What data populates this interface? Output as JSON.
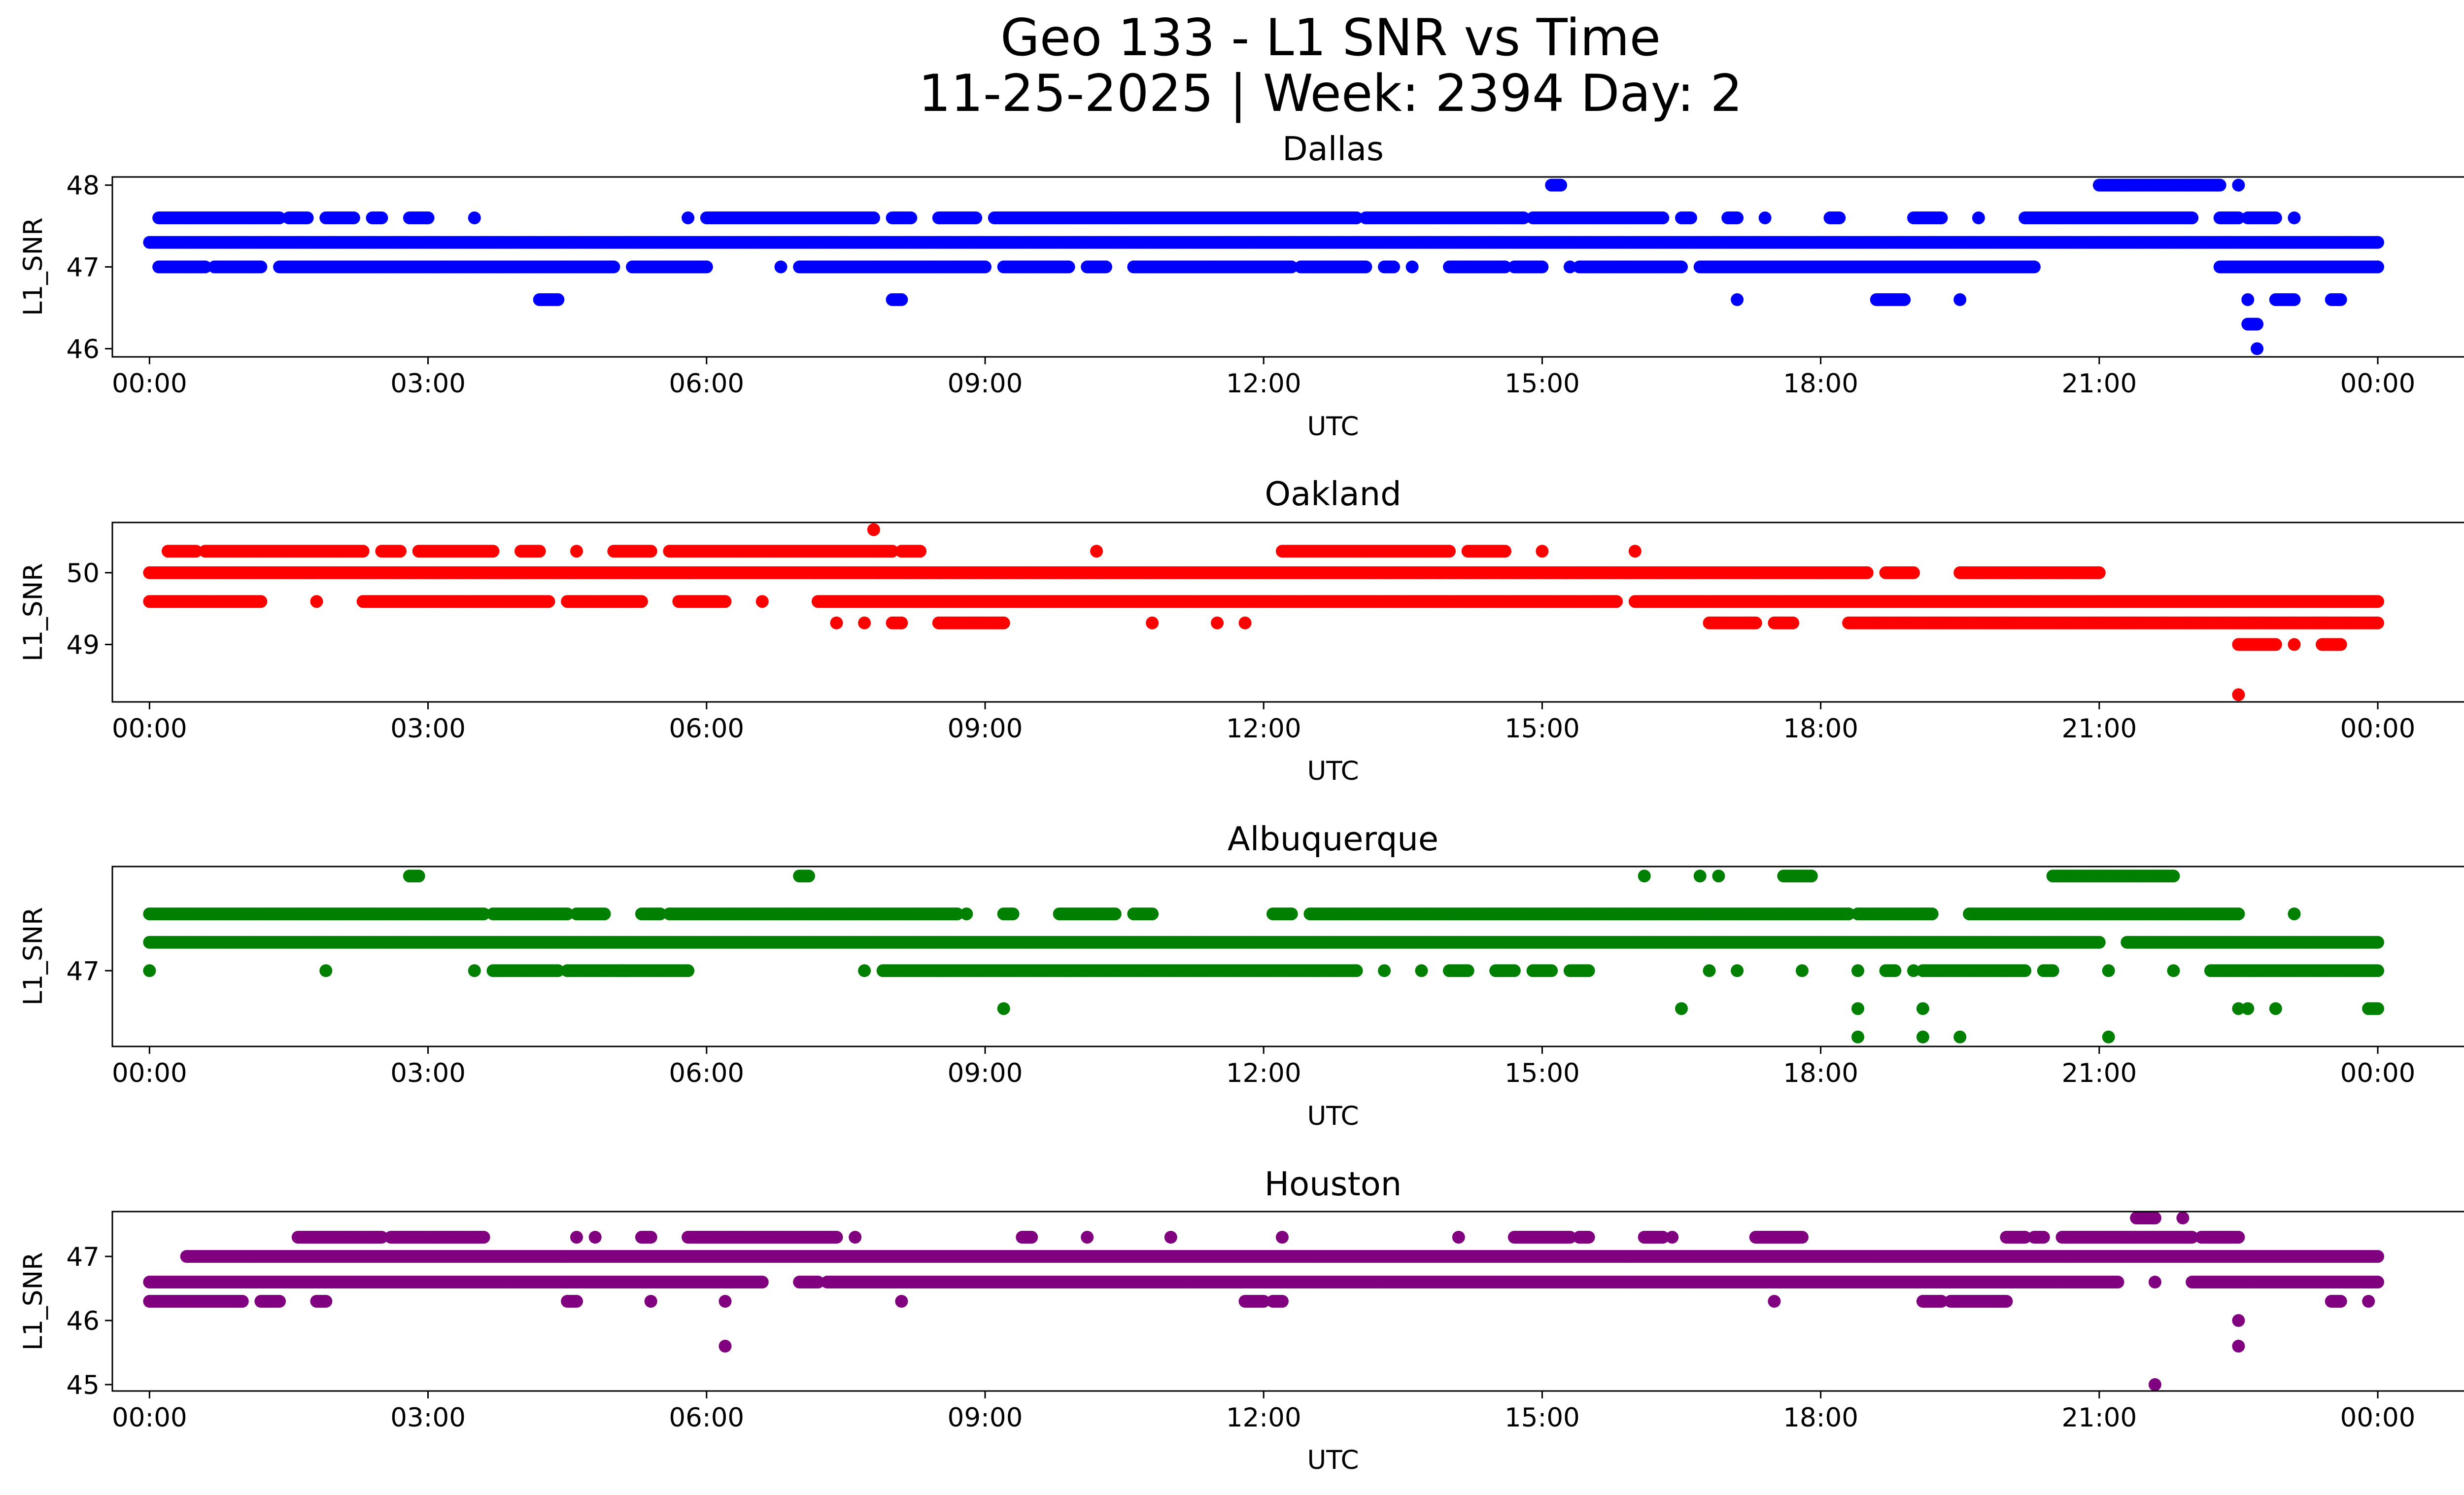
{
  "figure": {
    "title_line1": "Geo 133 - L1 SNR vs Time",
    "title_line2": "11-25-2025 | Week: 2394 Day: 2"
  },
  "chart_data": [
    {
      "type": "scatter",
      "title": "Dallas",
      "xlabel": "UTC",
      "ylabel": "L1_SNR",
      "color": "#0000ff",
      "xlim": [
        -0.4,
        25.9
      ],
      "ylim": [
        45.9,
        48.1
      ],
      "yticks": [
        46,
        47,
        48
      ],
      "xticks": [
        0,
        3,
        6,
        9,
        12,
        15,
        18,
        21,
        24
      ],
      "xtick_labels": [
        "00:00",
        "03:00",
        "06:00",
        "09:00",
        "12:00",
        "15:00",
        "18:00",
        "21:00",
        "00:00"
      ],
      "bands": [
        {
          "y": 47.3,
          "segments": [
            [
              0,
              24
            ]
          ]
        },
        {
          "y": 47.6,
          "segments": [
            [
              0.1,
              1.4
            ],
            [
              1.5,
              1.7
            ],
            [
              1.9,
              2.2
            ],
            [
              2.4,
              2.5
            ],
            [
              2.8,
              3.0
            ],
            [
              3.5,
              3.5
            ],
            [
              5.8,
              5.8
            ],
            [
              6.0,
              7.8
            ],
            [
              8.0,
              8.2
            ],
            [
              8.5,
              8.9
            ],
            [
              9.1,
              10.4
            ],
            [
              10.4,
              13.0
            ],
            [
              13.1,
              14.8
            ],
            [
              14.9,
              16.3
            ],
            [
              16.5,
              16.6
            ],
            [
              17.0,
              17.1
            ],
            [
              17.4,
              17.4
            ],
            [
              18.1,
              18.2
            ],
            [
              19.0,
              19.3
            ],
            [
              19.7,
              19.7
            ],
            [
              20.2,
              22.0
            ],
            [
              22.3,
              22.5
            ],
            [
              22.6,
              22.9
            ],
            [
              23.1,
              23.1
            ]
          ]
        },
        {
          "y": 47.0,
          "segments": [
            [
              0.1,
              0.6
            ],
            [
              0.7,
              1.2
            ],
            [
              1.4,
              5.0
            ],
            [
              5.2,
              6.0
            ],
            [
              6.8,
              6.8
            ],
            [
              7.0,
              9.0
            ],
            [
              9.2,
              9.9
            ],
            [
              10.1,
              10.3
            ],
            [
              10.6,
              12.3
            ],
            [
              12.4,
              13.1
            ],
            [
              13.3,
              13.4
            ],
            [
              13.6,
              13.6
            ],
            [
              14.0,
              14.6
            ],
            [
              14.7,
              15.0
            ],
            [
              15.3,
              15.3
            ],
            [
              15.4,
              16.5
            ],
            [
              16.7,
              20.3
            ],
            [
              22.3,
              24.0
            ]
          ]
        },
        {
          "y": 48.0,
          "segments": [
            [
              15.1,
              15.2
            ],
            [
              21.0,
              22.3
            ],
            [
              22.5,
              22.5
            ]
          ]
        },
        {
          "y": 46.6,
          "segments": [
            [
              4.2,
              4.4
            ],
            [
              8.0,
              8.1
            ],
            [
              17.1,
              17.1
            ],
            [
              18.6,
              18.9
            ],
            [
              19.5,
              19.5
            ],
            [
              22.6,
              22.6
            ],
            [
              22.9,
              23.1
            ],
            [
              23.5,
              23.6
            ]
          ]
        },
        {
          "y": 46.3,
          "segments": [
            [
              22.6,
              22.7
            ]
          ]
        },
        {
          "y": 46.0,
          "segments": [
            [
              22.7,
              22.7
            ]
          ]
        }
      ]
    },
    {
      "type": "scatter",
      "title": "Oakland",
      "xlabel": "UTC",
      "ylabel": "L1_SNR",
      "color": "#ff0000",
      "xlim": [
        -0.4,
        25.9
      ],
      "ylim": [
        48.2,
        50.7
      ],
      "yticks": [
        49,
        50
      ],
      "xticks": [
        0,
        3,
        6,
        9,
        12,
        15,
        18,
        21,
        24
      ],
      "xtick_labels": [
        "00:00",
        "03:00",
        "06:00",
        "09:00",
        "12:00",
        "15:00",
        "18:00",
        "21:00",
        "00:00"
      ],
      "bands": [
        {
          "y": 50.0,
          "segments": [
            [
              0,
              18.5
            ],
            [
              18.7,
              19.0
            ],
            [
              19.5,
              21.0
            ]
          ]
        },
        {
          "y": 49.6,
          "segments": [
            [
              0,
              1.2
            ],
            [
              1.8,
              1.8
            ],
            [
              2.3,
              4.3
            ],
            [
              4.5,
              5.3
            ],
            [
              5.7,
              6.2
            ],
            [
              6.6,
              6.6
            ],
            [
              7.2,
              15.8
            ],
            [
              16.0,
              24.0
            ]
          ]
        },
        {
          "y": 50.3,
          "segments": [
            [
              0.2,
              0.5
            ],
            [
              0.6,
              2.3
            ],
            [
              2.5,
              2.7
            ],
            [
              2.9,
              3.7
            ],
            [
              4.0,
              4.2
            ],
            [
              4.6,
              4.6
            ],
            [
              5.0,
              5.4
            ],
            [
              5.6,
              8.0
            ],
            [
              8.1,
              8.3
            ],
            [
              10.2,
              10.2
            ],
            [
              12.2,
              14.0
            ],
            [
              14.2,
              14.6
            ],
            [
              15.0,
              15.0
            ],
            [
              16.0,
              16.0
            ]
          ]
        },
        {
          "y": 49.3,
          "segments": [
            [
              7.4,
              7.4
            ],
            [
              7.7,
              7.7
            ],
            [
              8.0,
              8.1
            ],
            [
              8.5,
              9.2
            ],
            [
              10.8,
              10.8
            ],
            [
              11.5,
              11.5
            ],
            [
              11.8,
              11.8
            ],
            [
              16.8,
              17.3
            ],
            [
              17.5,
              17.7
            ],
            [
              18.3,
              24.0
            ]
          ]
        },
        {
          "y": 50.6,
          "segments": [
            [
              7.8,
              7.8
            ]
          ]
        },
        {
          "y": 49.0,
          "segments": [
            [
              22.5,
              22.9
            ],
            [
              23.1,
              23.1
            ],
            [
              23.4,
              23.6
            ]
          ]
        },
        {
          "y": 48.3,
          "segments": [
            [
              22.5,
              22.5
            ]
          ]
        }
      ]
    },
    {
      "type": "scatter",
      "title": "Albuquerque",
      "xlabel": "UTC",
      "ylabel": "L1_SNR",
      "color": "#008000",
      "xlim": [
        -0.4,
        25.9
      ],
      "ylim": [
        46.2,
        48.1
      ],
      "yticks": [
        47
      ],
      "xticks": [
        0,
        3,
        6,
        9,
        12,
        15,
        18,
        21,
        24
      ],
      "xtick_labels": [
        "00:00",
        "03:00",
        "06:00",
        "09:00",
        "12:00",
        "15:00",
        "18:00",
        "21:00",
        "00:00"
      ],
      "bands": [
        {
          "y": 47.3,
          "segments": [
            [
              0,
              21.0
            ],
            [
              21.3,
              24.0
            ]
          ]
        },
        {
          "y": 47.6,
          "segments": [
            [
              0,
              3.6
            ],
            [
              3.7,
              4.5
            ],
            [
              4.6,
              4.9
            ],
            [
              5.3,
              5.5
            ],
            [
              5.6,
              8.7
            ],
            [
              8.8,
              8.8
            ],
            [
              9.2,
              9.3
            ],
            [
              9.8,
              10.4
            ],
            [
              10.6,
              10.8
            ],
            [
              12.1,
              12.3
            ],
            [
              12.5,
              18.3
            ],
            [
              18.3,
              18.3
            ],
            [
              18.4,
              19.1
            ],
            [
              19.1,
              19.2
            ],
            [
              19.6,
              22.5
            ],
            [
              23.1,
              23.1
            ]
          ]
        },
        {
          "y": 47.0,
          "segments": [
            [
              0,
              0
            ],
            [
              1.9,
              1.9
            ],
            [
              3.5,
              3.5
            ],
            [
              3.7,
              4.4
            ],
            [
              4.5,
              5.1
            ],
            [
              5.1,
              5.8
            ],
            [
              7.7,
              7.7
            ],
            [
              7.9,
              13.0
            ],
            [
              13.3,
              13.3
            ],
            [
              13.7,
              13.7
            ],
            [
              14.0,
              14.2
            ],
            [
              14.5,
              14.7
            ],
            [
              14.9,
              15.1
            ],
            [
              15.3,
              15.5
            ],
            [
              16.8,
              16.8
            ],
            [
              17.1,
              17.1
            ],
            [
              17.8,
              17.8
            ],
            [
              18.4,
              18.4
            ],
            [
              18.7,
              18.8
            ],
            [
              19.0,
              19.0
            ],
            [
              19.1,
              20.2
            ],
            [
              20.4,
              20.5
            ],
            [
              21.1,
              21.1
            ],
            [
              21.8,
              21.8
            ],
            [
              22.2,
              24.0
            ]
          ]
        },
        {
          "y": 48.0,
          "segments": [
            [
              2.8,
              2.9
            ],
            [
              7.0,
              7.1
            ],
            [
              16.1,
              16.1
            ],
            [
              16.7,
              16.7
            ],
            [
              16.9,
              16.9
            ],
            [
              17.6,
              17.9
            ],
            [
              20.5,
              21.8
            ]
          ]
        },
        {
          "y": 46.6,
          "segments": [
            [
              9.2,
              9.2
            ],
            [
              16.5,
              16.5
            ],
            [
              18.4,
              18.4
            ],
            [
              19.1,
              19.1
            ],
            [
              22.5,
              22.5
            ],
            [
              22.6,
              22.6
            ],
            [
              22.9,
              22.9
            ],
            [
              23.9,
              24.0
            ]
          ]
        },
        {
          "y": 46.3,
          "segments": [
            [
              18.4,
              18.4
            ],
            [
              19.1,
              19.1
            ],
            [
              19.5,
              19.5
            ],
            [
              21.1,
              21.1
            ]
          ]
        }
      ]
    },
    {
      "type": "scatter",
      "title": "Houston",
      "xlabel": "UTC",
      "ylabel": "L1_SNR",
      "color": "#800080",
      "xlim": [
        -0.4,
        25.9
      ],
      "ylim": [
        44.9,
        47.7
      ],
      "yticks": [
        45,
        46,
        47
      ],
      "xticks": [
        0,
        3,
        6,
        9,
        12,
        15,
        18,
        21,
        24
      ],
      "xtick_labels": [
        "00:00",
        "03:00",
        "06:00",
        "09:00",
        "12:00",
        "15:00",
        "18:00",
        "21:00",
        "00:00"
      ],
      "bands": [
        {
          "y": 47.0,
          "segments": [
            [
              0.4,
              24.0
            ]
          ]
        },
        {
          "y": 46.6,
          "segments": [
            [
              0,
              6.6
            ],
            [
              7.0,
              7.2
            ],
            [
              7.3,
              21.2
            ],
            [
              21.6,
              21.6
            ],
            [
              22.0,
              22.5
            ],
            [
              22.5,
              24.0
            ]
          ]
        },
        {
          "y": 46.3,
          "segments": [
            [
              0,
              1.0
            ],
            [
              1.2,
              1.4
            ],
            [
              1.8,
              1.9
            ],
            [
              4.5,
              4.6
            ],
            [
              5.4,
              5.4
            ],
            [
              6.2,
              6.2
            ],
            [
              8.1,
              8.1
            ],
            [
              11.8,
              12.0
            ],
            [
              12.1,
              12.2
            ],
            [
              17.5,
              17.5
            ],
            [
              19.1,
              19.3
            ],
            [
              19.4,
              19.9
            ],
            [
              19.9,
              20.0
            ],
            [
              23.5,
              23.6
            ],
            [
              23.9,
              23.9
            ]
          ]
        },
        {
          "y": 47.3,
          "segments": [
            [
              1.6,
              2.5
            ],
            [
              2.6,
              3.6
            ],
            [
              4.6,
              4.6
            ],
            [
              4.8,
              4.8
            ],
            [
              5.3,
              5.4
            ],
            [
              5.8,
              7.4
            ],
            [
              7.6,
              7.6
            ],
            [
              9.4,
              9.5
            ],
            [
              10.1,
              10.1
            ],
            [
              11.0,
              11.0
            ],
            [
              12.2,
              12.2
            ],
            [
              14.1,
              14.1
            ],
            [
              14.7,
              15.3
            ],
            [
              15.4,
              15.5
            ],
            [
              16.1,
              16.3
            ],
            [
              16.4,
              16.4
            ],
            [
              17.3,
              17.8
            ],
            [
              20.0,
              20.2
            ],
            [
              20.3,
              20.4
            ],
            [
              20.6,
              22.0
            ],
            [
              22.1,
              22.5
            ]
          ]
        },
        {
          "y": 47.6,
          "segments": [
            [
              21.4,
              21.6
            ],
            [
              21.9,
              21.9
            ]
          ]
        },
        {
          "y": 46.0,
          "segments": [
            [
              22.5,
              22.5
            ]
          ]
        },
        {
          "y": 45.6,
          "segments": [
            [
              6.2,
              6.2
            ],
            [
              22.5,
              22.5
            ]
          ]
        },
        {
          "y": 45.0,
          "segments": [
            [
              21.6,
              21.6
            ]
          ]
        }
      ]
    }
  ]
}
